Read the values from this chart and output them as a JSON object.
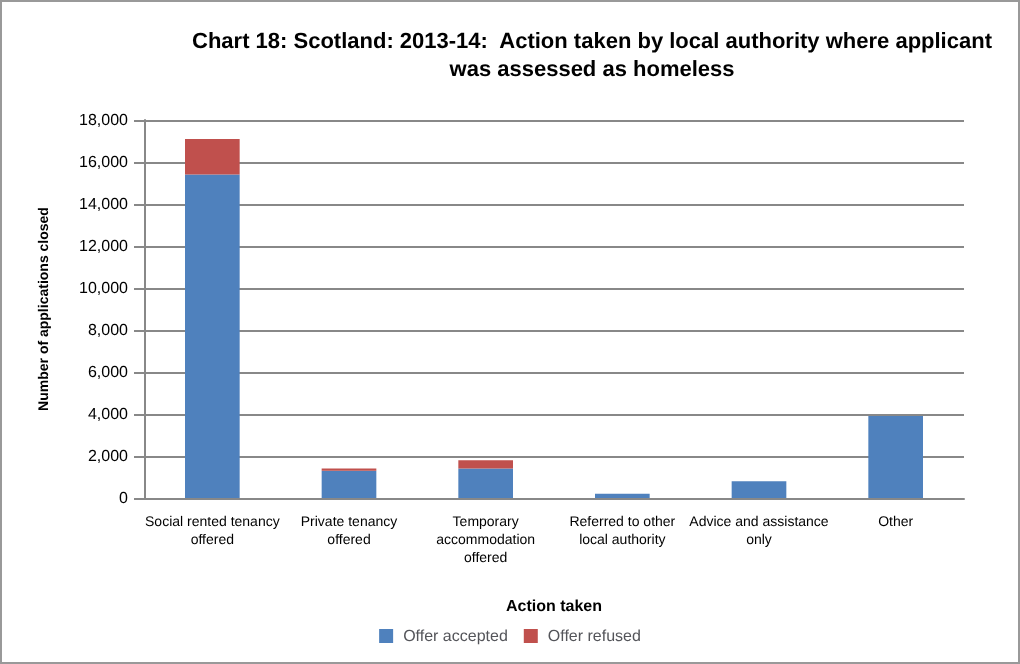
{
  "chart_data": {
    "type": "bar",
    "title": "Chart 18: Scotland: 2013-14:  Action taken by local authority where applicant\nwas assessed as homeless",
    "xlabel": "Action taken",
    "ylabel": "Number of applications closed",
    "categories": [
      "Social rented tenancy\noffered",
      "Private tenancy\noffered",
      "Temporary\naccommodation\noffered",
      "Referred to other\nlocal authority",
      "Advice and assistance\nonly",
      "Other"
    ],
    "series": [
      {
        "name": "Offer accepted",
        "color": "#4f81bd",
        "values": [
          15400,
          1300,
          1400,
          200,
          800,
          3900
        ]
      },
      {
        "name": "Offer refused",
        "color": "#c0504d",
        "values": [
          1700,
          100,
          400,
          null,
          null,
          null
        ]
      }
    ],
    "stacked": true,
    "ylim": [
      0,
      18000
    ],
    "yticks": [
      0,
      {
        "value": 2000,
        "label": "2,000"
      },
      {
        "value": 4000,
        "label": "4,000"
      },
      {
        "value": 6000,
        "label": "6,000"
      },
      {
        "value": 8000,
        "label": "8,000"
      },
      {
        "value": 10000,
        "label": "10,000"
      },
      {
        "value": 12000,
        "label": "12,000"
      },
      {
        "value": 14000,
        "label": "14,000"
      },
      {
        "value": 16000,
        "label": "16,000"
      },
      {
        "value": 18000,
        "label": "18,000"
      }
    ],
    "grid": "y",
    "legend": "bottom"
  }
}
